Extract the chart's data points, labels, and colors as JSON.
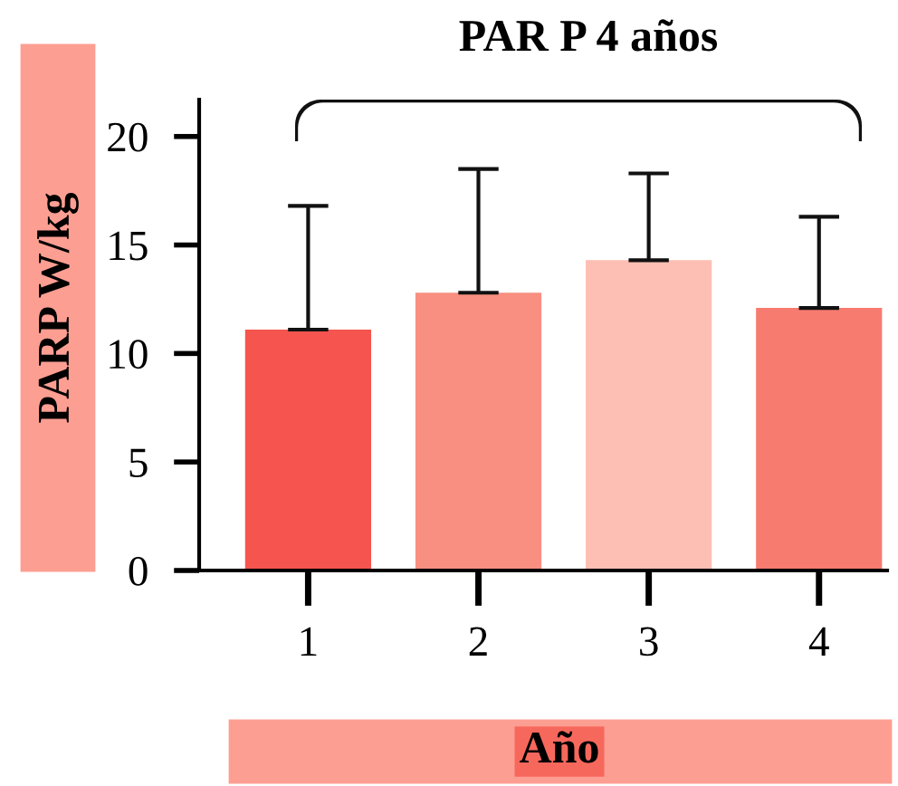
{
  "chart_data": {
    "type": "bar",
    "title": "PAR P 4 años",
    "xlabel": "Año",
    "ylabel": "PARP W/kg",
    "categories": [
      "1",
      "2",
      "3",
      "4"
    ],
    "values": [
      11.1,
      12.8,
      14.3,
      12.1
    ],
    "colors": [
      "#f5544f",
      "#f88f80",
      "#fdbfb3",
      "#f77b6f"
    ],
    "errors": [
      [
        11.1,
        16.8
      ],
      [
        12.8,
        18.5
      ],
      [
        14.3,
        18.3
      ],
      [
        12.1,
        16.3
      ]
    ],
    "ylim": [
      0,
      21.7
    ],
    "yticks": [
      0,
      5,
      10,
      15,
      20
    ],
    "grid": false,
    "legend": false
  }
}
